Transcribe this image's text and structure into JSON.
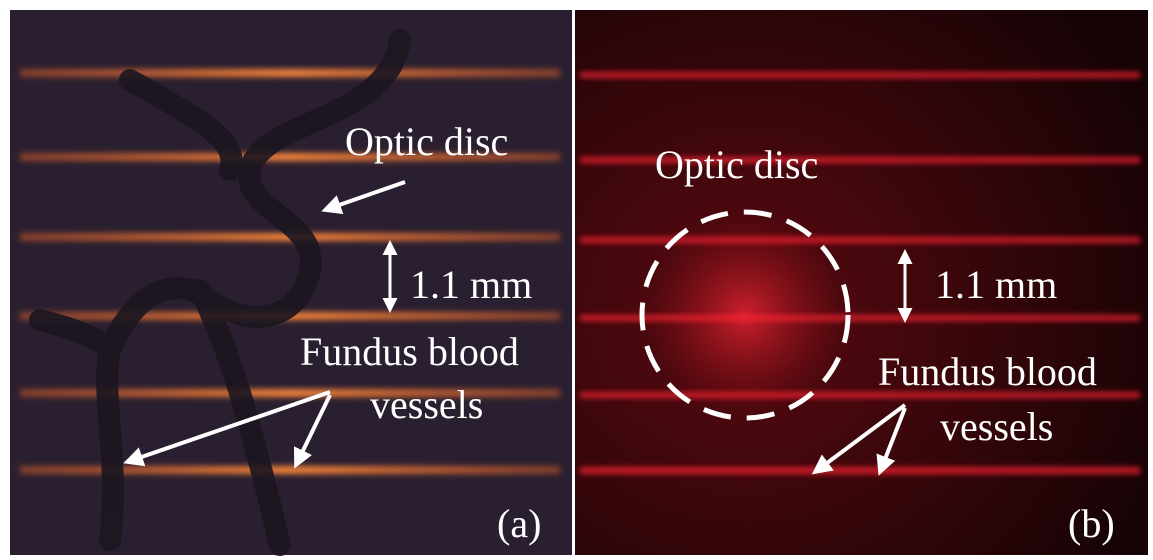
{
  "panels": [
    {
      "optic_label": "Optic disc",
      "scale_label": "1.1 mm",
      "vessel_label": [
        "Fundus blood",
        "vessels"
      ],
      "panel_label": "(a)"
    },
    {
      "optic_label": "Optic disc",
      "scale_label": "1.1 mm",
      "vessel_label": [
        "Fundus blood",
        "vessels"
      ],
      "panel_label": "(b)"
    }
  ]
}
